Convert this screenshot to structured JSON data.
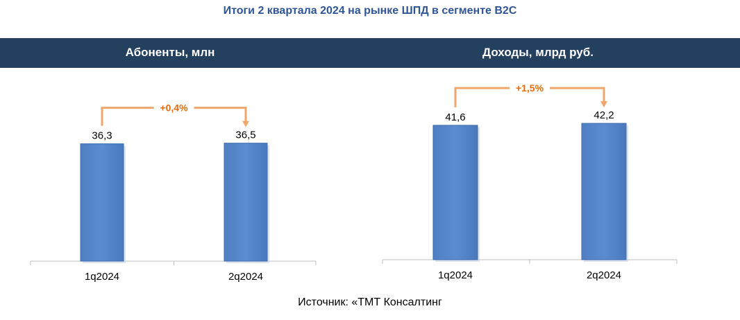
{
  "title": "Итоги 2 квартала 2024 на рынке ШПД в сегменте B2C",
  "source": "Источник: «ТМТ Консалтинг",
  "colors": {
    "banner": "#24405f",
    "title": "#2f5597",
    "bar": "#5b8ccf",
    "bar_edge": "#3f6db3",
    "arrow": "#f0a66b",
    "change_label": "#e36c0a"
  },
  "chart_data": [
    {
      "type": "bar",
      "title": "Абоненты, млн",
      "categories": [
        "1q2024",
        "2q2024"
      ],
      "values": [
        36.3,
        36.5
      ],
      "value_labels": [
        "36,3",
        "36,5"
      ],
      "change_label": "+0,4%",
      "ylim": [
        0,
        60
      ]
    },
    {
      "type": "bar",
      "title": "Доходы, млрд руб.",
      "categories": [
        "1q2024",
        "2q2024"
      ],
      "values": [
        41.6,
        42.2
      ],
      "value_labels": [
        "41,6",
        "42,2"
      ],
      "change_label": "+1,5%",
      "ylim": [
        0,
        60
      ]
    }
  ]
}
